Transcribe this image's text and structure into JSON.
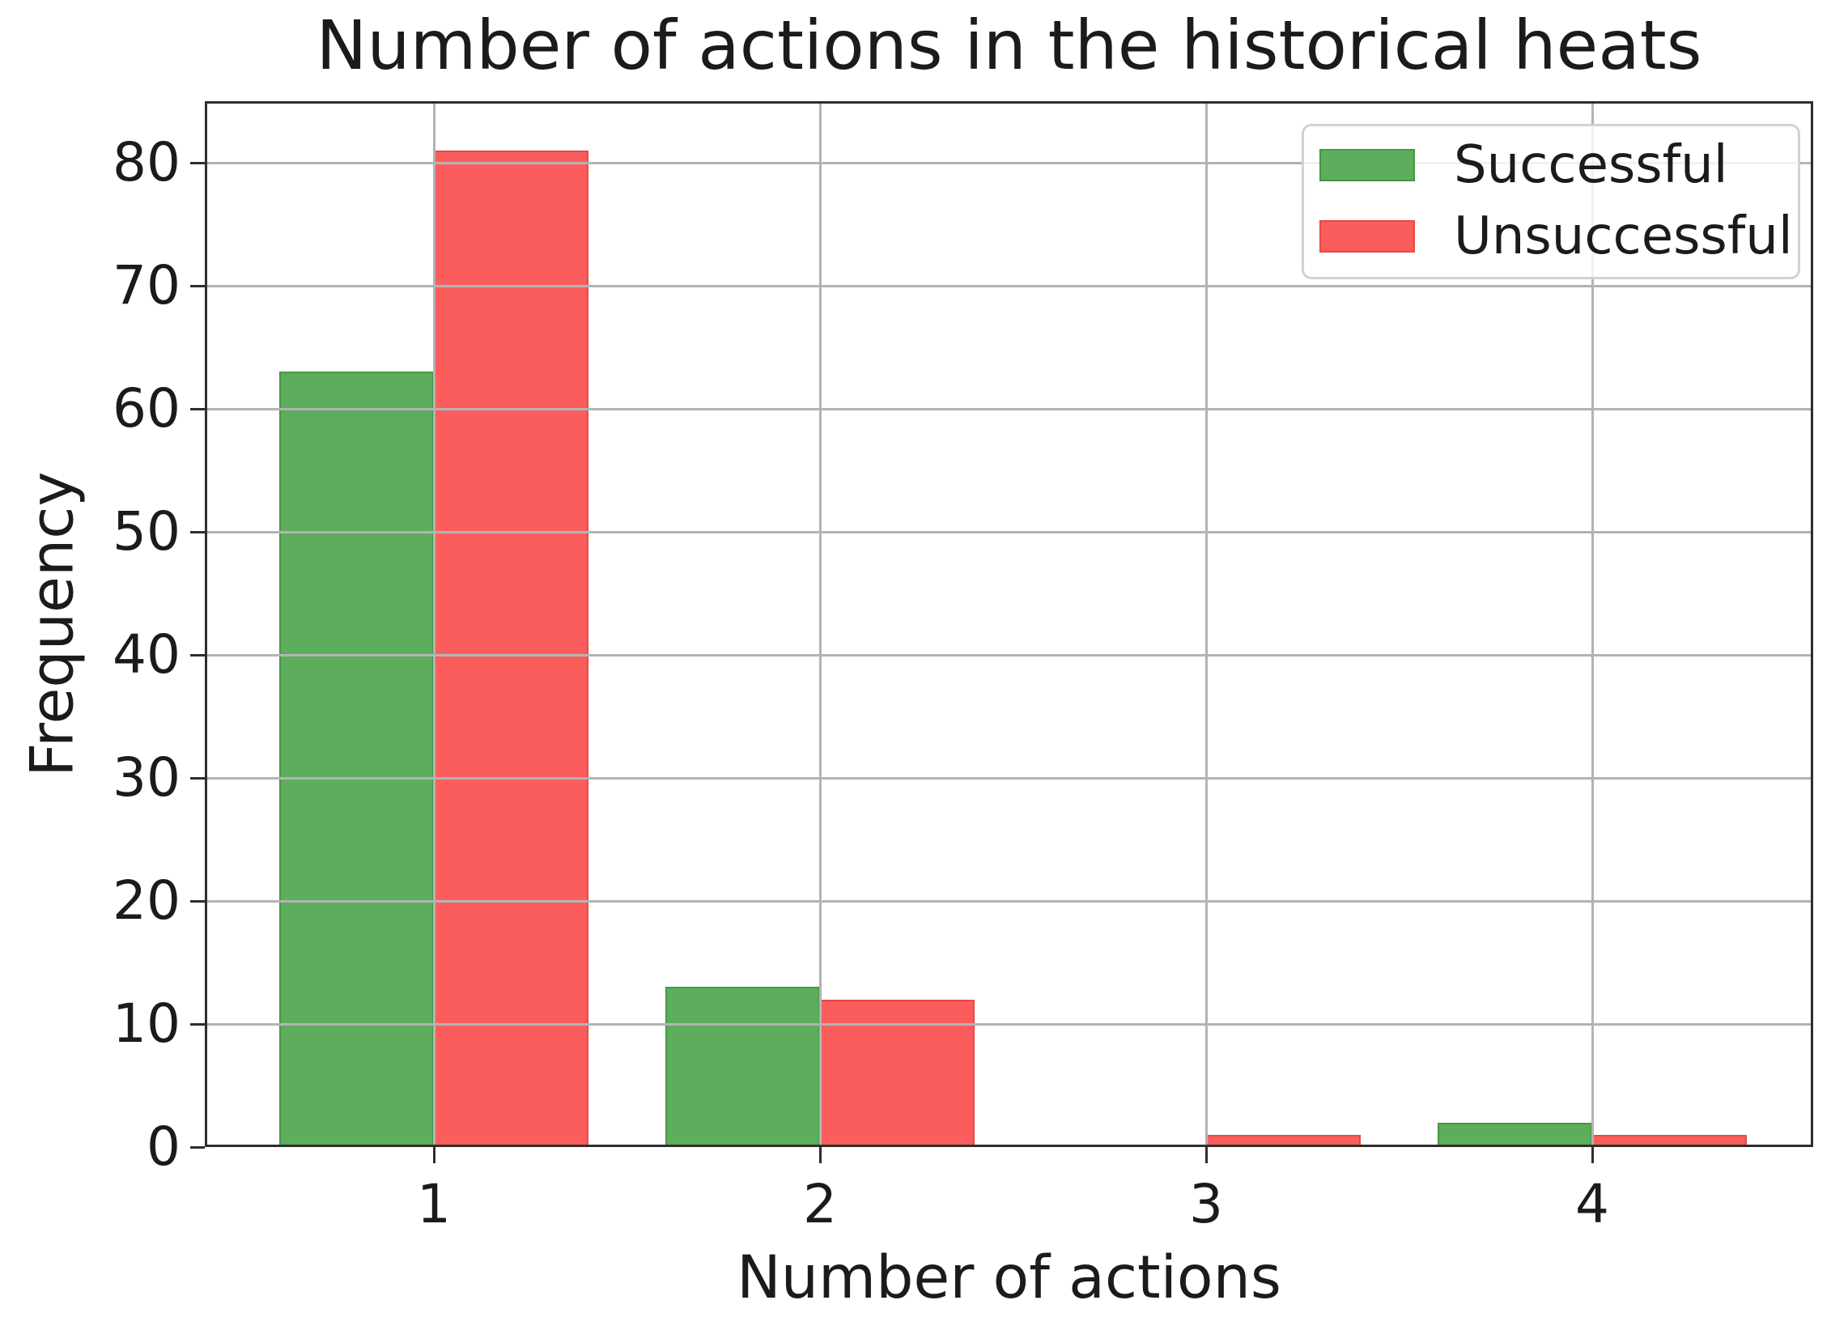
{
  "chart_data": {
    "type": "bar",
    "variant": "grouped-histogram",
    "title": "Number of actions in the historical heats",
    "xlabel": "Number of actions",
    "ylabel": "Frequency",
    "categories": [
      1,
      2,
      3,
      4
    ],
    "series": [
      {
        "name": "Successful",
        "values": [
          63,
          13,
          0,
          2
        ],
        "color": "#5cad5c",
        "edge_color": "#459745"
      },
      {
        "name": "Unsuccessful",
        "values": [
          81,
          12,
          1,
          1
        ],
        "color": "#fb5d5d",
        "edge_color": "#e54848"
      }
    ],
    "xticks": [
      1,
      2,
      3,
      4
    ],
    "yticks": [
      0,
      10,
      20,
      30,
      40,
      50,
      60,
      70,
      80
    ],
    "ylim": [
      0,
      85
    ],
    "xlim": [
      0.41,
      4.57
    ],
    "grid": true,
    "grid_over_bars": true,
    "grid_color": "#b3b3b3",
    "spine_color": "#2e2e2e",
    "background_color": "#ffffff",
    "text_color": "#1b1b1b",
    "legend_position": "upper right",
    "legend_entries": [
      "Successful",
      "Unsuccessful"
    ]
  }
}
